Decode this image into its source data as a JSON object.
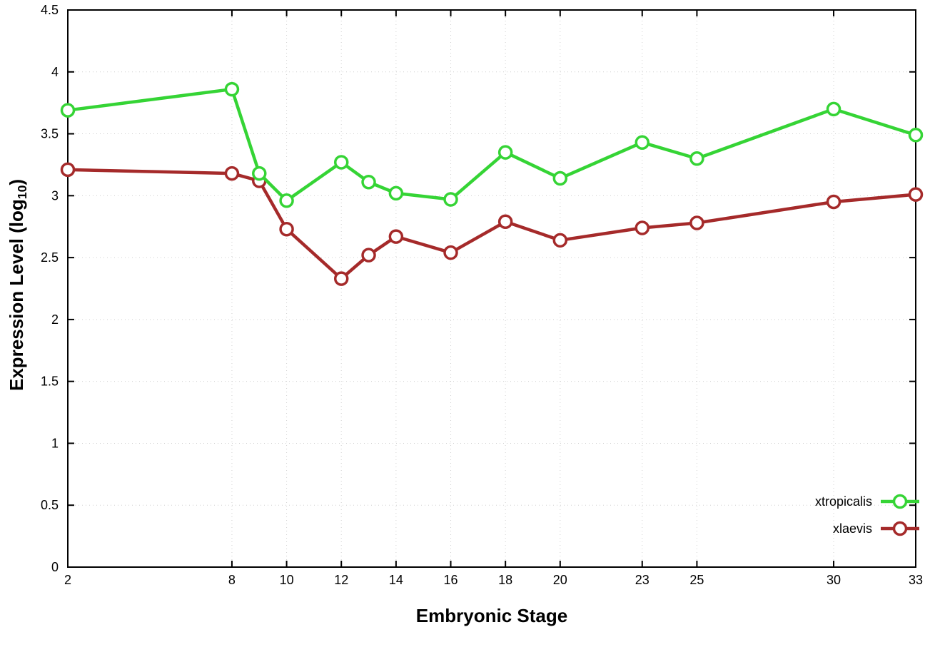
{
  "chart_data": {
    "type": "line",
    "title": "",
    "xlabel": "Embryonic Stage",
    "ylabel": "Expression Level (log10)",
    "ylabel_parts": {
      "main": "Expression Level (log",
      "sub": "10",
      "end": ")"
    },
    "xlim": [
      2,
      33
    ],
    "ylim": [
      0,
      4.5
    ],
    "xticks": [
      2,
      8,
      10,
      12,
      14,
      16,
      18,
      20,
      23,
      25,
      30,
      33
    ],
    "yticks": [
      0,
      0.5,
      1,
      1.5,
      2,
      2.5,
      3,
      3.5,
      4,
      4.5
    ],
    "ytick_labels": [
      "0",
      "0.5",
      "1",
      "1.5",
      "2",
      "2.5",
      "3",
      "3.5",
      "4",
      "4.5"
    ],
    "grid": true,
    "legend_position": "bottom-right",
    "background_color": "#ffffff",
    "grid_color": "#d0d0d0",
    "border_color": "#000000",
    "marker": "open-circle",
    "x": [
      2,
      8,
      9,
      10,
      12,
      13,
      14,
      16,
      18,
      20,
      23,
      25,
      30,
      33
    ],
    "series": [
      {
        "name": "xtropicalis",
        "color": "#35d435",
        "values": [
          3.69,
          3.86,
          3.18,
          2.96,
          3.27,
          3.11,
          3.02,
          2.97,
          3.35,
          3.14,
          3.43,
          3.3,
          3.7,
          3.49
        ]
      },
      {
        "name": "xlaevis",
        "color": "#a52a2a",
        "values": [
          3.21,
          3.18,
          3.12,
          2.73,
          2.33,
          2.52,
          2.67,
          2.54,
          2.79,
          2.64,
          2.74,
          2.78,
          2.95,
          3.01
        ]
      }
    ]
  }
}
